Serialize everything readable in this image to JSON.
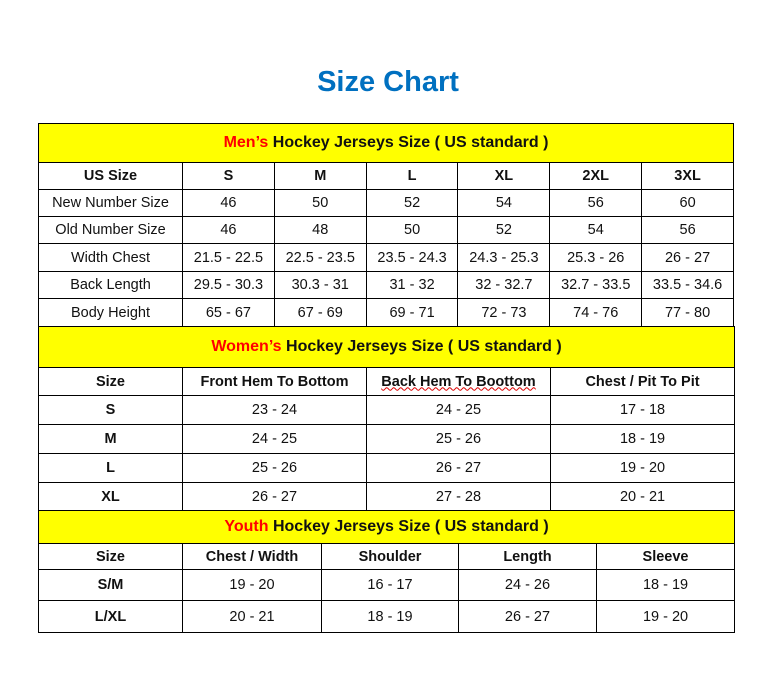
{
  "title": "Size Chart",
  "colors": {
    "title": "#0070C0",
    "header_bg": "#ffff00",
    "header_accent": "#ff0000"
  },
  "men": {
    "heading_accent": "Men’s",
    "heading_rest": " Hockey Jerseys Size ( US standard )",
    "columns": [
      "US Size",
      "S",
      "M",
      "L",
      "XL",
      "2XL",
      "3XL"
    ],
    "rows": [
      [
        "New Number Size",
        "46",
        "50",
        "52",
        "54",
        "56",
        "60"
      ],
      [
        "Old Number Size",
        "46",
        "48",
        "50",
        "52",
        "54",
        "56"
      ],
      [
        "Width Chest",
        "21.5 - 22.5",
        "22.5 - 23.5",
        "23.5 - 24.3",
        "24.3 - 25.3",
        "25.3 - 26",
        "26 - 27"
      ],
      [
        "Back Length",
        "29.5 - 30.3",
        "30.3 - 31",
        "31 - 32",
        "32 - 32.7",
        "32.7 - 33.5",
        "33.5 - 34.6"
      ],
      [
        "Body Height",
        "65 - 67",
        "67 - 69",
        "69 - 71",
        "72 - 73",
        "74 - 76",
        "77 - 80"
      ]
    ]
  },
  "women": {
    "heading_accent": "Women’s",
    "heading_rest": " Hockey Jerseys Size ( US standard )",
    "columns": [
      "Size",
      "Front Hem To Bottom",
      "Back Hem To Boottom",
      "Chest / Pit To Pit"
    ],
    "rows": [
      [
        "S",
        "23 - 24",
        "24 - 25",
        "17 - 18"
      ],
      [
        "M",
        "24 - 25",
        "25 - 26",
        "18 - 19"
      ],
      [
        "L",
        "25 - 26",
        "26 - 27",
        "19 - 20"
      ],
      [
        "XL",
        "26 - 27",
        "27 - 28",
        "20 - 21"
      ]
    ]
  },
  "youth": {
    "heading_accent": "Youth",
    "heading_rest": " Hockey Jerseys Size ( US standard )",
    "columns": [
      "Size",
      "Chest / Width",
      "Shoulder",
      "Length",
      "Sleeve"
    ],
    "rows": [
      [
        "S/M",
        "19 - 20",
        "16 - 17",
        "24 - 26",
        "18 - 19"
      ],
      [
        "L/XL",
        "20 - 21",
        "18 - 19",
        "26 - 27",
        "19 - 20"
      ]
    ]
  }
}
